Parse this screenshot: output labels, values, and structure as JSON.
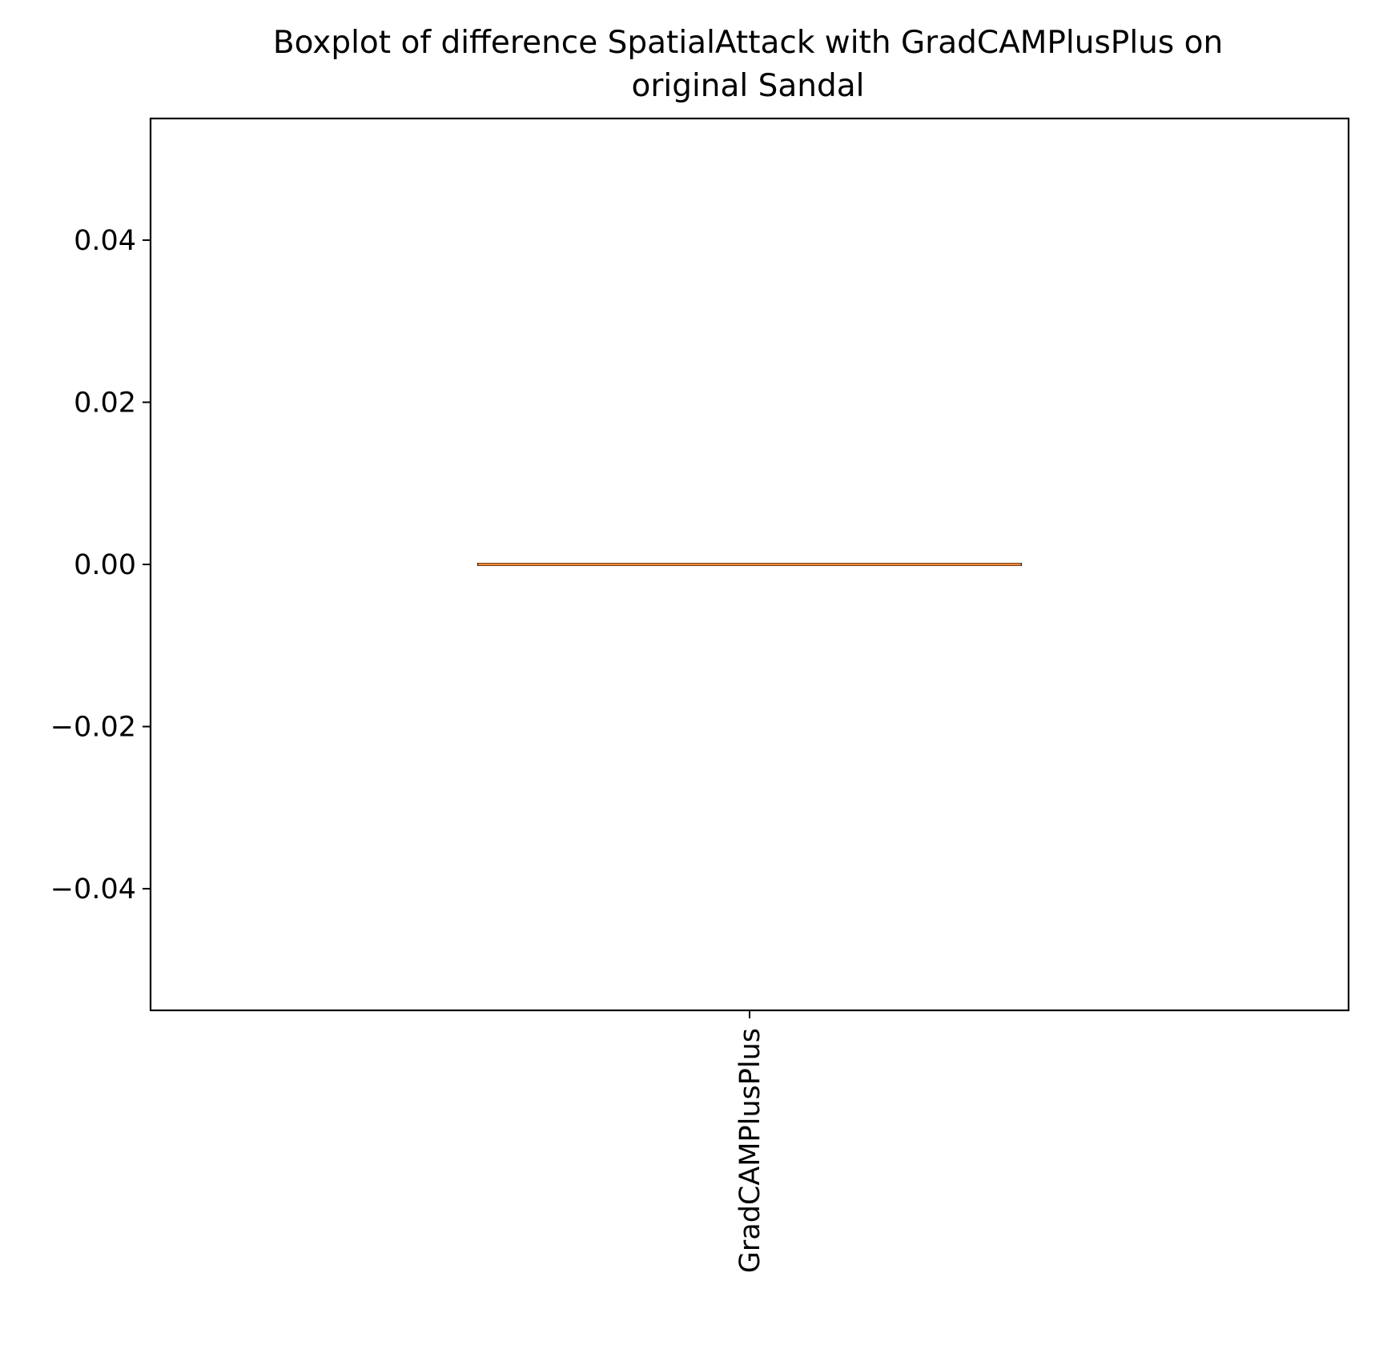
{
  "chart_data": {
    "type": "box",
    "title_lines": [
      "Boxplot of difference SpatialAttack with GradCAMPlusPlus on",
      "original Sandal"
    ],
    "xlabel": "",
    "ylabel": "",
    "categories": [
      "GradCAMPlusPlus"
    ],
    "boxes": [
      {
        "category": "GradCAMPlusPlus",
        "min": 0.0,
        "q1": 0.0,
        "median": 0.0,
        "q3": 0.0,
        "max": 0.0
      }
    ],
    "ylim": [
      -0.055,
      0.055
    ],
    "yticks": [
      -0.04,
      -0.02,
      0.0,
      0.02,
      0.04
    ],
    "ytick_labels": [
      "−0.04",
      "−0.02",
      "0.00",
      "0.02",
      "0.04"
    ],
    "grid": false,
    "x_tick_rotation": "vertical",
    "colors": {
      "median": "#ef8636",
      "box": "#000000",
      "axes": "#000000"
    }
  }
}
